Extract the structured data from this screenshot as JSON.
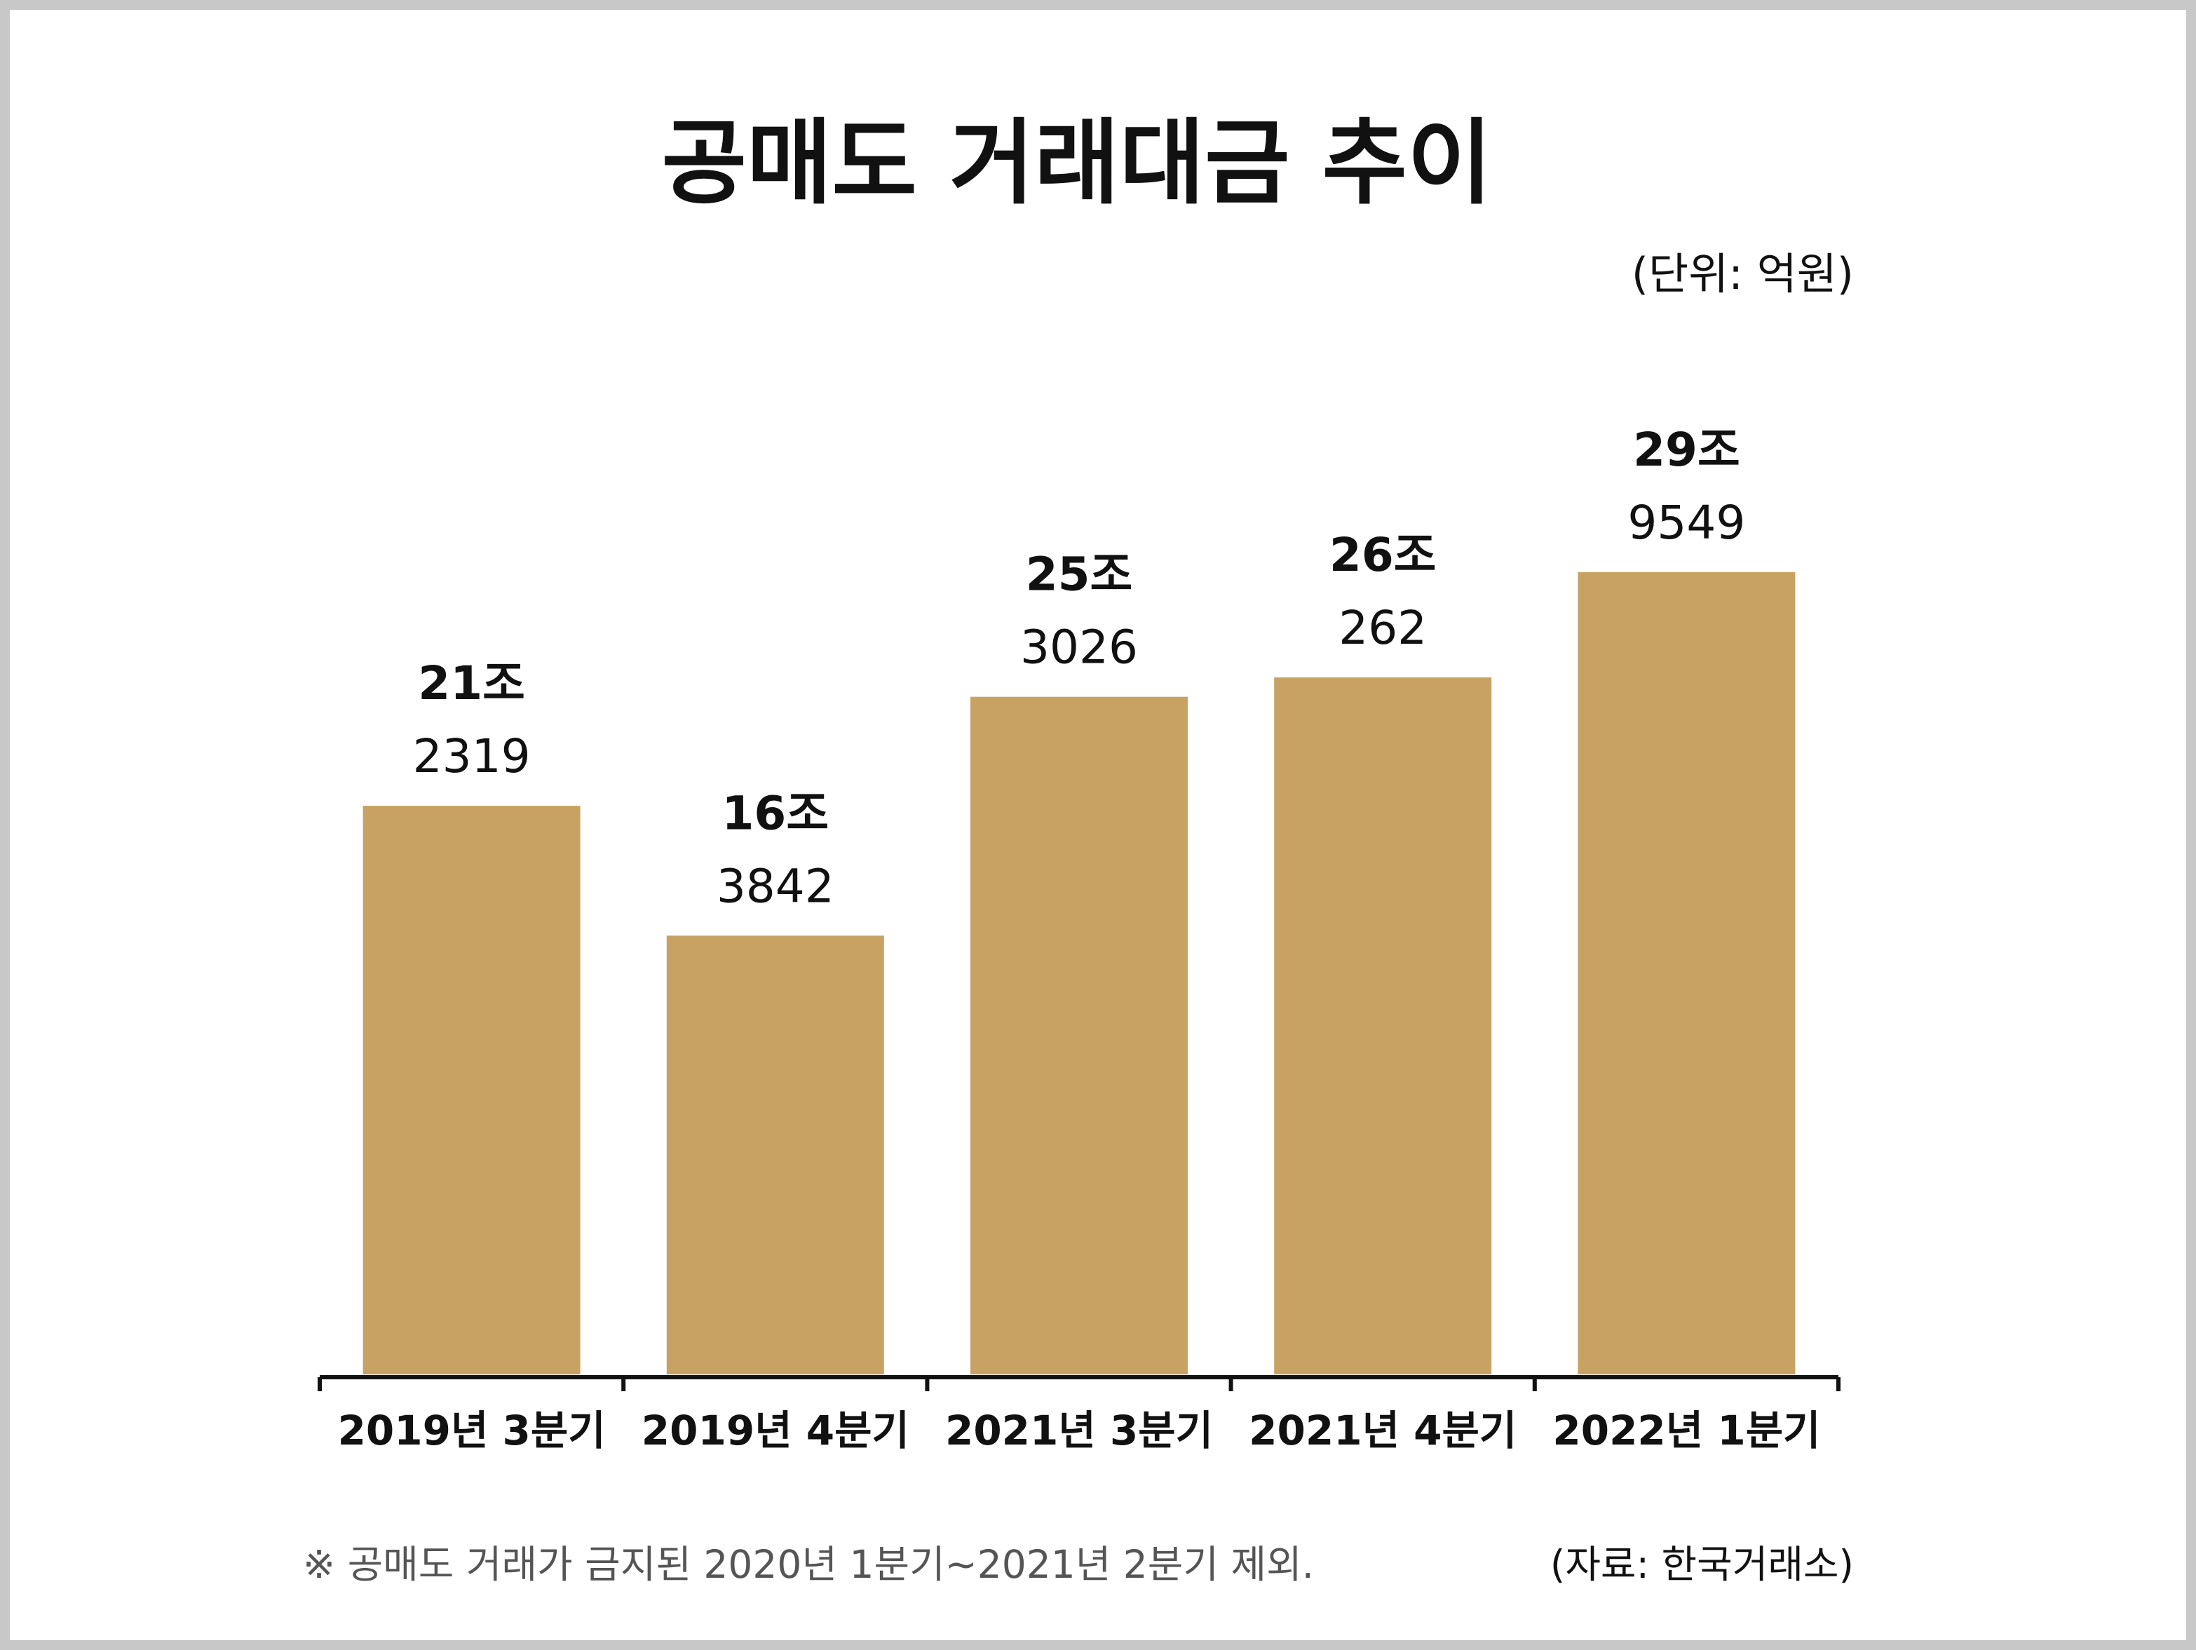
{
  "chart_data": {
    "type": "bar",
    "title": "공매도 거래대금 추이",
    "unit_label": "(단위: 억원)",
    "categories": [
      "2019년 3분기",
      "2019년 4분기",
      "2021년 3분기",
      "2021년 4분기",
      "2022년 1분기"
    ],
    "values": [
      212319,
      163842,
      253026,
      260262,
      299549
    ],
    "value_labels": [
      {
        "trillion": "21조",
        "rest": "2319"
      },
      {
        "trillion": "16조",
        "rest": "3842"
      },
      {
        "trillion": "25조",
        "rest": "3026"
      },
      {
        "trillion": "26조",
        "rest": "262"
      },
      {
        "trillion": "29조",
        "rest": "9549"
      }
    ],
    "ylim": [
      0,
      299549
    ],
    "grid": false,
    "bar_color": "#c8a263",
    "axis_color": "#111111"
  },
  "footnote": "※ 공매도 거래가 금지된 2020년 1분기~2021년 2분기 제외.",
  "source": "(자료: 한국거래소)"
}
